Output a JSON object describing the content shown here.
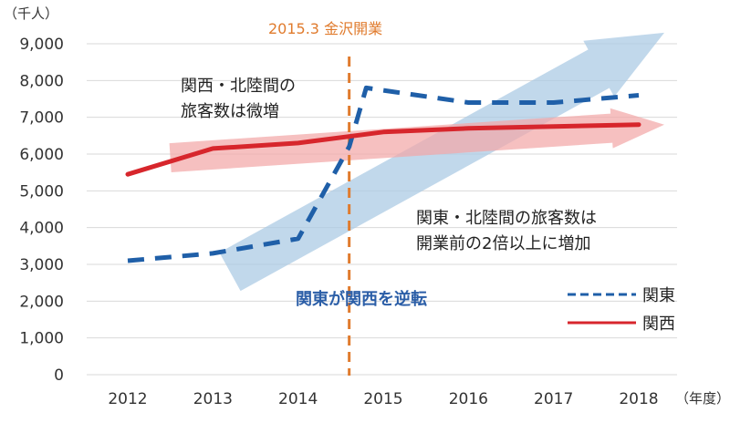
{
  "chart_data": {
    "type": "line",
    "ylabel": "（千人）",
    "xlabel": "（年度）",
    "ylim": [
      0,
      9000
    ],
    "yticks": [
      0,
      1000,
      2000,
      3000,
      4000,
      5000,
      6000,
      7000,
      8000,
      9000
    ],
    "ytick_labels": [
      "0",
      "1,000",
      "2,000",
      "3,000",
      "4,000",
      "5,000",
      "6,000",
      "7,000",
      "8,000",
      "9,000"
    ],
    "categories": [
      "2012",
      "2013",
      "2014",
      "2015",
      "2016",
      "2017",
      "2018"
    ],
    "series": [
      {
        "name": "関東",
        "style": "dashed",
        "color": "#1f5fa8",
        "points": [
          {
            "x": 2012,
            "y": 3100
          },
          {
            "x": 2013,
            "y": 3300
          },
          {
            "x": 2014,
            "y": 3700
          },
          {
            "x": 2014.6,
            "y": 6200
          },
          {
            "x": 2014.8,
            "y": 7800
          },
          {
            "x": 2016,
            "y": 7400
          },
          {
            "x": 2017,
            "y": 7400
          },
          {
            "x": 2018,
            "y": 7600
          }
        ]
      },
      {
        "name": "関西",
        "style": "solid",
        "color": "#d7262c",
        "points": [
          {
            "x": 2012,
            "y": 5450
          },
          {
            "x": 2013,
            "y": 6150
          },
          {
            "x": 2014,
            "y": 6300
          },
          {
            "x": 2015,
            "y": 6600
          },
          {
            "x": 2016,
            "y": 6700
          },
          {
            "x": 2017,
            "y": 6750
          },
          {
            "x": 2018,
            "y": 6800
          }
        ]
      }
    ],
    "event_line": {
      "x": 2014.6,
      "label": "2015.3 金沢開業",
      "color": "#e07b2d"
    },
    "trend_arrows": [
      {
        "name": "関東-trend",
        "from": {
          "x": 2013.2,
          "y": 2800
        },
        "to": {
          "x": 2018.3,
          "y": 9300
        },
        "color": "#a9c9e3"
      },
      {
        "name": "関西-trend",
        "from": {
          "x": 2012.5,
          "y": 5900
        },
        "to": {
          "x": 2018.3,
          "y": 6800
        },
        "color": "#f2a8a8"
      }
    ],
    "annotations": {
      "kansai": [
        "関西・北陸間の",
        "旅客数は微増"
      ],
      "kanto": [
        "関東・北陸間の旅客数は",
        "開業前の2倍以上に増加"
      ],
      "reversal": "関東が関西を逆転"
    },
    "legend": {
      "placement": "bottom-right",
      "items": [
        "関東",
        "関西"
      ]
    },
    "grid": true,
    "colors": {
      "kanto": "#1f5fa8",
      "kansai": "#d7262c",
      "event": "#e07b2d",
      "reversal_text": "#2b5ea7",
      "grid": "#d9d9d9"
    }
  }
}
